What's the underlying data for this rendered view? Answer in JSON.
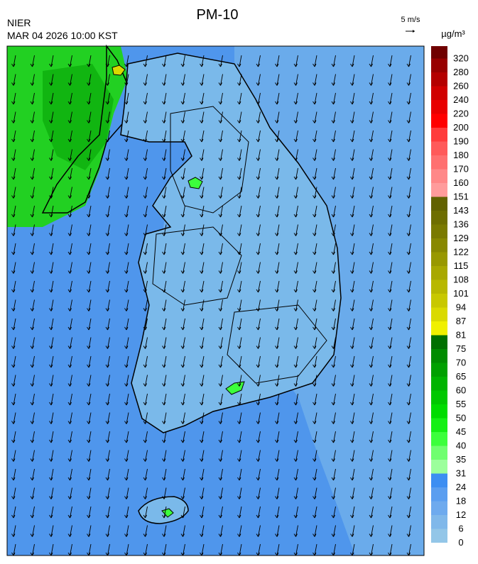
{
  "header": {
    "title": "PM-10",
    "agency": "NIER",
    "timestamp": "MAR 04 2026 10:00 KST",
    "wind_scale": "5 m/s",
    "unit": "µg/m³"
  },
  "colorbar": {
    "labels": [
      "0",
      "6",
      "12",
      "18",
      "24",
      "31",
      "35",
      "40",
      "45",
      "50",
      "55",
      "60",
      "65",
      "70",
      "75",
      "81",
      "87",
      "94",
      "101",
      "108",
      "115",
      "122",
      "129",
      "136",
      "143",
      "151",
      "160",
      "170",
      "180",
      "190",
      "200",
      "220",
      "240",
      "260",
      "280",
      "320"
    ],
    "colors": [
      "#93c6e8",
      "#80b8ea",
      "#6eaaee",
      "#5b9ef0",
      "#3d8ef2",
      "#9cff9c",
      "#70ff70",
      "#3cff3c",
      "#14f014",
      "#00dc00",
      "#00c800",
      "#00b400",
      "#00a000",
      "#008c00",
      "#007000",
      "#f0f000",
      "#dada00",
      "#c8c800",
      "#b8b800",
      "#a8a800",
      "#989800",
      "#888800",
      "#7a7a00",
      "#6e6e00",
      "#626200",
      "#ff9c9c",
      "#ff8888",
      "#ff7070",
      "#ff5a5a",
      "#ff3c3c",
      "#ff0000",
      "#e80000",
      "#d00000",
      "#b40000",
      "#980000",
      "#700000"
    ]
  }
}
